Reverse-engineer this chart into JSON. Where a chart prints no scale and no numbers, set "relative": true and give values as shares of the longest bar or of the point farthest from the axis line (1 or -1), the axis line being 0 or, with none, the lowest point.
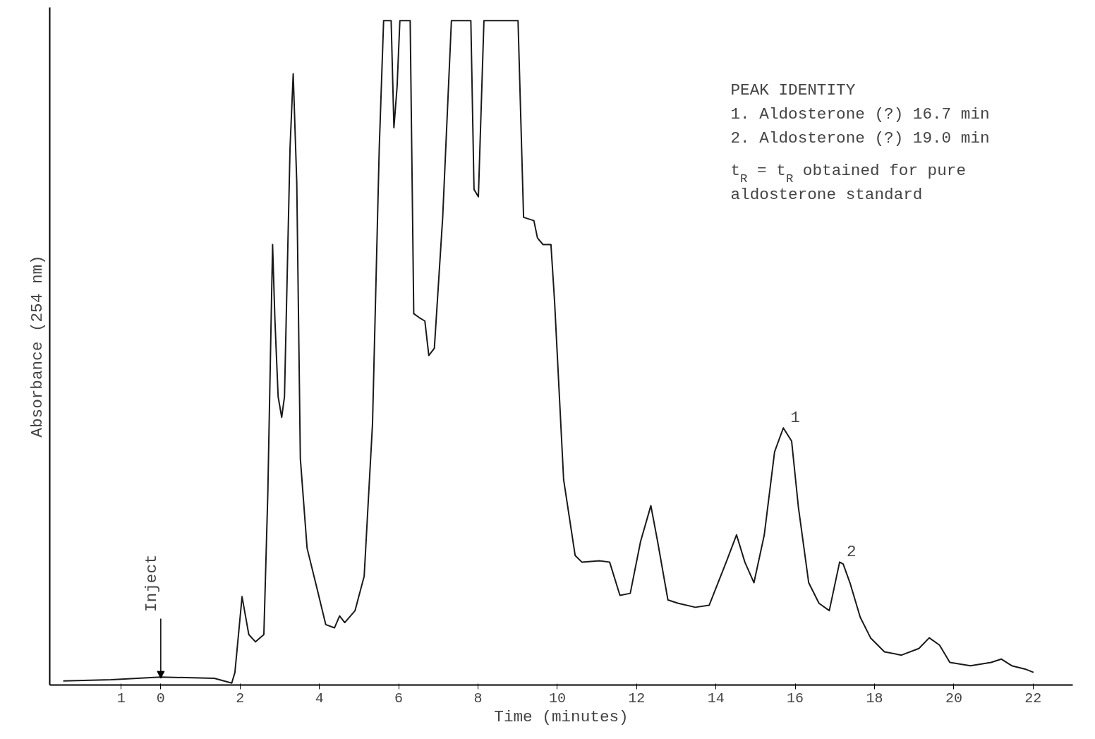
{
  "chart_data": {
    "type": "line",
    "relative": true,
    "xlabel": "Time (minutes)",
    "ylabel": "Absorbance (254 nm)",
    "xlim": [
      -2.8,
      23
    ],
    "xticks": [
      {
        "value": -1,
        "label": "1"
      },
      0,
      2,
      4,
      6,
      8,
      10,
      12,
      14,
      16,
      18,
      20,
      22
    ],
    "grid": false,
    "marker": "none",
    "line_style": "solid",
    "series": [
      {
        "color": "#1a1a1a",
        "x": [
          -2.46,
          -1.25,
          0,
          1.35,
          1.79,
          1.87,
          2.05,
          2.22,
          2.39,
          2.6,
          2.7,
          2.82,
          2.88,
          2.96,
          3.05,
          3.12,
          3.26,
          3.34,
          3.43,
          3.52,
          3.69,
          3.95,
          4.16,
          4.38,
          4.51,
          4.64,
          4.9,
          5.13,
          5.34,
          5.51,
          5.62,
          5.81,
          5.88,
          5.96,
          6.03,
          6.29,
          6.38,
          6.52,
          6.66,
          6.76,
          6.9,
          7.11,
          7.33,
          7.82,
          7.9,
          8.01,
          8.15,
          9.01,
          9.15,
          9.41,
          9.5,
          9.64,
          9.84,
          9.93,
          10.16,
          10.45,
          10.62,
          11.06,
          11.32,
          11.58,
          11.84,
          12.1,
          12.36,
          12.53,
          12.79,
          13.05,
          13.48,
          13.83,
          14.26,
          14.52,
          14.73,
          14.96,
          15.22,
          15.48,
          15.7,
          15.91,
          16.08,
          16.34,
          16.6,
          16.86,
          17.12,
          17.21,
          17.38,
          17.64,
          17.9,
          18.25,
          18.68,
          19.12,
          19.38,
          19.64,
          19.9,
          20.42,
          20.94,
          21.2,
          21.46,
          21.8,
          22.01
        ],
        "values": [
          0.006,
          0.008,
          0.012,
          0.01,
          0.003,
          0.019,
          0.133,
          0.076,
          0.065,
          0.076,
          0.289,
          0.663,
          0.548,
          0.434,
          0.403,
          0.434,
          0.808,
          0.92,
          0.756,
          0.341,
          0.206,
          0.143,
          0.091,
          0.086,
          0.104,
          0.094,
          0.112,
          0.164,
          0.393,
          0.808,
          1,
          1,
          0.839,
          0.901,
          1,
          1,
          0.559,
          0.553,
          0.548,
          0.496,
          0.507,
          0.704,
          1,
          1,
          0.746,
          0.735,
          1,
          1,
          0.704,
          0.699,
          0.673,
          0.663,
          0.663,
          0.579,
          0.309,
          0.195,
          0.185,
          0.187,
          0.185,
          0.135,
          0.138,
          0.216,
          0.27,
          0.216,
          0.128,
          0.123,
          0.117,
          0.12,
          0.185,
          0.226,
          0.185,
          0.154,
          0.226,
          0.351,
          0.387,
          0.367,
          0.268,
          0.154,
          0.123,
          0.112,
          0.185,
          0.182,
          0.154,
          0.102,
          0.071,
          0.05,
          0.045,
          0.055,
          0.071,
          0.06,
          0.034,
          0.029,
          0.034,
          0.039,
          0.029,
          0.024,
          0.019
        ]
      }
    ],
    "annotations": [
      {
        "text": "Inject",
        "x": 0,
        "y": 0.01
      },
      {
        "text": "1",
        "x": 15.7,
        "y": 0.387
      },
      {
        "text": "2",
        "x": 17.12,
        "y": 0.185
      },
      "PEAK IDENTITY",
      "1.  Aldosterone (?) 16.7 min",
      "2.  Aldosterone (?) 19.0 min",
      "t$_{R}$ = t$_{R}$ obtained for pure",
      "aldosterone standard"
    ]
  }
}
